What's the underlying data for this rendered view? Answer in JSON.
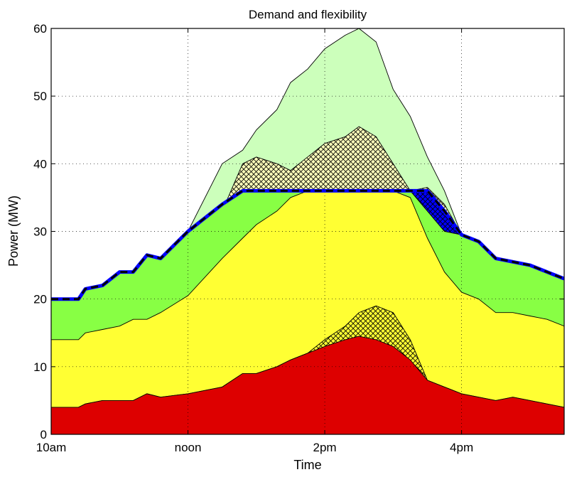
{
  "chart_data": {
    "type": "area",
    "title": "Demand and flexibility",
    "xlabel": "Time",
    "ylabel": "Power (MW)",
    "xlim": [
      10,
      17.5
    ],
    "ylim": [
      0,
      60
    ],
    "xticks": [
      {
        "value": 10,
        "label": "10am"
      },
      {
        "value": 12,
        "label": "noon"
      },
      {
        "value": 14,
        "label": "2pm"
      },
      {
        "value": 16,
        "label": "4pm"
      }
    ],
    "yticks": [
      0,
      10,
      20,
      30,
      40,
      50,
      60
    ],
    "grid": true,
    "x": [
      10.0,
      10.4,
      10.5,
      10.75,
      11.0,
      11.2,
      11.4,
      11.6,
      12.0,
      12.5,
      12.8,
      13.0,
      13.3,
      13.5,
      13.75,
      14.0,
      14.3,
      14.5,
      14.75,
      15.0,
      15.25,
      15.5,
      15.75,
      16.0,
      16.25,
      16.5,
      16.75,
      17.0,
      17.25,
      17.5
    ],
    "series": [
      {
        "id": "green-top-envelope",
        "color": "#ccffbb",
        "values": [
          20,
          20,
          21.5,
          22,
          24,
          24,
          26.5,
          26,
          30,
          40,
          42,
          45,
          48,
          52,
          54,
          57,
          59,
          60,
          58,
          51,
          47,
          41,
          36,
          29.5,
          28.5,
          26,
          25.5,
          25,
          24,
          23
        ]
      },
      {
        "id": "yellow-hatched-envelope",
        "color": "#ffffbb",
        "values": [
          20,
          20,
          21.5,
          22,
          24,
          24,
          26.5,
          26,
          30,
          33,
          40,
          41,
          40,
          39,
          41,
          43,
          44,
          45.5,
          44,
          40,
          36,
          36.5,
          34,
          29.5,
          28.5,
          26,
          25.5,
          25,
          24,
          23
        ]
      },
      {
        "id": "demand-line",
        "color": "#0000ff",
        "values": [
          20,
          20,
          21.5,
          22,
          24,
          24,
          26.5,
          26,
          30,
          34,
          36,
          36,
          36,
          36,
          36,
          36,
          36,
          36,
          36,
          36,
          36,
          36,
          33,
          29.5,
          28.5,
          26,
          25.5,
          25,
          24,
          23
        ]
      },
      {
        "id": "green-layer",
        "color": "#88ff44",
        "values": [
          20,
          20,
          21.5,
          22,
          24,
          24,
          26.5,
          26,
          30,
          34,
          36,
          36,
          36,
          36,
          36,
          36,
          36,
          36,
          36,
          36,
          36,
          33,
          30,
          29.5,
          28.5,
          26,
          25.5,
          25,
          24,
          23
        ]
      },
      {
        "id": "yellow-layer",
        "color": "#ffff33",
        "values": [
          14,
          14,
          15,
          15.5,
          16,
          17,
          17,
          18,
          20.5,
          26,
          29,
          31,
          33,
          35,
          36,
          36,
          36,
          36,
          36,
          36,
          35,
          29,
          24,
          21,
          20,
          18,
          18,
          17.5,
          17,
          16
        ]
      },
      {
        "id": "red-hatched-envelope",
        "color": "#ffff33",
        "values": [
          4,
          4,
          4.5,
          5,
          5,
          5,
          6,
          5.5,
          6,
          7,
          9,
          9,
          10,
          11,
          12,
          14,
          16,
          18,
          19,
          18,
          14,
          8,
          7,
          6,
          5.5,
          5,
          5.5,
          5,
          4.5,
          4
        ]
      },
      {
        "id": "red-layer",
        "color": "#dd0000",
        "values": [
          4,
          4,
          4.5,
          5,
          5,
          5,
          6,
          5.5,
          6,
          7,
          9,
          9,
          10,
          11,
          12,
          13,
          14,
          14.5,
          14,
          13,
          11,
          8,
          7,
          6,
          5.5,
          5,
          5.5,
          5,
          4.5,
          4
        ]
      }
    ],
    "demand_line_style": {
      "outer": "#000000",
      "inner": "#0000ff",
      "dashed": true
    }
  }
}
